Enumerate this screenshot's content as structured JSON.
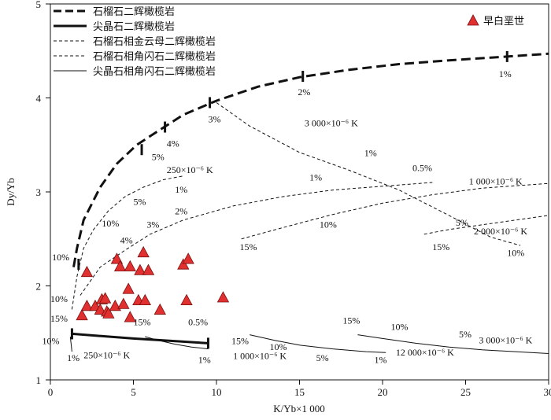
{
  "chart_data": {
    "type": "scatter",
    "xlabel": "K/Yb×1 000",
    "ylabel": "Dy/Yb",
    "xlim": [
      0,
      30
    ],
    "ylim": [
      1,
      5
    ],
    "xticks": [
      "0",
      "5",
      "10",
      "15",
      "20",
      "25",
      "30"
    ],
    "yticks": [
      "1",
      "2",
      "3",
      "4",
      "5"
    ],
    "grid": false,
    "legend_position": "top-left",
    "series": [
      {
        "name": "石榴石二辉橄榄岩",
        "kind": "line",
        "style": "bold-dashed",
        "points": [
          [
            1.4,
            2.2
          ],
          [
            1.6,
            2.4
          ],
          [
            2.0,
            2.7
          ],
          [
            3.0,
            3.05
          ],
          [
            4.0,
            3.3
          ],
          [
            5.2,
            3.5
          ],
          [
            6.5,
            3.65
          ],
          [
            8.0,
            3.82
          ],
          [
            10.0,
            3.97
          ],
          [
            12.5,
            4.12
          ],
          [
            15.0,
            4.22
          ],
          [
            18.0,
            4.3
          ],
          [
            21.0,
            4.36
          ],
          [
            24.0,
            4.4
          ],
          [
            27.5,
            4.44
          ],
          [
            30.0,
            4.47
          ]
        ],
        "tick_marks": [
          [
            1.7,
            2.23
          ],
          [
            5.5,
            3.45
          ],
          [
            6.9,
            3.69
          ],
          [
            9.6,
            3.95
          ],
          [
            15.2,
            4.23
          ],
          [
            27.5,
            4.44
          ]
        ]
      },
      {
        "name": "尖晶石二辉橄榄岩",
        "kind": "line",
        "style": "bold-solid",
        "points": [
          [
            1.3,
            1.49
          ],
          [
            5.0,
            1.44
          ],
          [
            9.5,
            1.39
          ]
        ],
        "tick_marks": [
          [
            1.3,
            1.49
          ],
          [
            9.5,
            1.39
          ]
        ]
      },
      {
        "name": "石榴石相金云母二辉橄榄岩",
        "kind": "line",
        "style": "dashed",
        "curves": [
          [
            [
              1.3,
              1.75
            ],
            [
              1.6,
              2.1
            ],
            [
              2.0,
              2.4
            ],
            [
              2.6,
              2.6
            ],
            [
              3.5,
              2.8
            ],
            [
              4.5,
              2.95
            ],
            [
              5.6,
              3.05
            ],
            [
              6.8,
              3.13
            ],
            [
              8.0,
              3.17
            ]
          ],
          [
            [
              1.8,
              1.9
            ],
            [
              3.0,
              2.2
            ],
            [
              4.5,
              2.38
            ],
            [
              6.0,
              2.55
            ],
            [
              8.0,
              2.7
            ],
            [
              11.0,
              2.85
            ],
            [
              14.0,
              2.95
            ],
            [
              17.0,
              3.02
            ],
            [
              20.0,
              3.06
            ],
            [
              23.0,
              3.1
            ]
          ],
          [
            [
              11.5,
              2.5
            ],
            [
              14.0,
              2.62
            ],
            [
              17.0,
              2.76
            ],
            [
              20.0,
              2.88
            ],
            [
              23.0,
              2.97
            ],
            [
              26.0,
              3.04
            ],
            [
              30.0,
              3.09
            ]
          ],
          [
            [
              10.0,
              3.95
            ],
            [
              12.0,
              3.7
            ],
            [
              15.0,
              3.42
            ],
            [
              18.0,
              3.23
            ],
            [
              21.0,
              3.02
            ],
            [
              24.0,
              2.75
            ],
            [
              26.5,
              2.52
            ],
            [
              28.3,
              2.43
            ]
          ]
        ]
      },
      {
        "name": "石榴石相角闪石二辉橄榄岩",
        "kind": "line",
        "style": "dashed",
        "curves": [
          [
            [
              22.5,
              2.55
            ],
            [
              24.0,
              2.6
            ],
            [
              26.0,
              2.65
            ],
            [
              28.0,
              2.7
            ],
            [
              30.0,
              2.75
            ]
          ]
        ]
      },
      {
        "name": "尖晶石相角闪石二辉橄榄岩",
        "kind": "line",
        "style": "thin-solid",
        "curves": [
          [
            [
              1.2,
              1.46
            ],
            [
              1.3,
              1.3
            ]
          ],
          [
            [
              5.7,
              1.46
            ],
            [
              6.5,
              1.42
            ],
            [
              7.5,
              1.38
            ],
            [
              8.5,
              1.35
            ],
            [
              9.5,
              1.33
            ]
          ],
          [
            [
              12.0,
              1.48
            ],
            [
              13.5,
              1.42
            ],
            [
              15.0,
              1.37
            ],
            [
              17.0,
              1.33
            ],
            [
              19.0,
              1.3
            ],
            [
              20.2,
              1.29
            ]
          ],
          [
            [
              18.5,
              1.48
            ],
            [
              20.0,
              1.44
            ],
            [
              22.0,
              1.39
            ],
            [
              24.0,
              1.35
            ],
            [
              26.0,
              1.32
            ],
            [
              28.0,
              1.3
            ],
            [
              30.0,
              1.28
            ]
          ]
        ]
      },
      {
        "name": "早白垩世",
        "kind": "scatter",
        "marker": "triangle",
        "color": "#e03030",
        "points": [
          [
            2.2,
            2.14
          ],
          [
            4.0,
            2.28
          ],
          [
            4.2,
            2.2
          ],
          [
            4.8,
            2.2
          ],
          [
            5.4,
            2.16
          ],
          [
            5.6,
            2.35
          ],
          [
            5.9,
            2.16
          ],
          [
            8.0,
            2.22
          ],
          [
            8.3,
            2.28
          ],
          [
            4.7,
            1.96
          ],
          [
            2.2,
            1.78
          ],
          [
            2.7,
            1.78
          ],
          [
            3.1,
            1.85
          ],
          [
            3.0,
            1.74
          ],
          [
            3.4,
            1.72
          ],
          [
            3.5,
            1.7
          ],
          [
            3.9,
            1.78
          ],
          [
            4.4,
            1.8
          ],
          [
            5.3,
            1.84
          ],
          [
            5.7,
            1.84
          ],
          [
            6.6,
            1.74
          ],
          [
            8.2,
            1.84
          ],
          [
            10.4,
            1.87
          ],
          [
            1.9,
            1.68
          ],
          [
            4.8,
            1.66
          ],
          [
            3.3,
            1.86
          ]
        ]
      }
    ],
    "annotations": [
      {
        "text": "10%",
        "x": 0.1,
        "y": 2.27
      },
      {
        "text": "5%",
        "x": 6.1,
        "y": 3.34
      },
      {
        "text": "4%",
        "x": 7.0,
        "y": 3.48
      },
      {
        "text": "3%",
        "x": 9.5,
        "y": 3.74
      },
      {
        "text": "2%",
        "x": 14.9,
        "y": 4.03
      },
      {
        "text": "1%",
        "x": 27.0,
        "y": 4.22
      },
      {
        "text": "10%",
        "x": 0.0,
        "y": 1.83
      },
      {
        "text": "15%",
        "x": 0.0,
        "y": 1.62
      },
      {
        "text": "10%",
        "x": -0.5,
        "y": 1.38
      },
      {
        "text": "1%",
        "x": 1.0,
        "y": 1.2
      },
      {
        "text": "250×10⁻⁶ K",
        "x": 2.0,
        "y": 1.23
      },
      {
        "text": "250×10⁻⁶ K",
        "x": 7.0,
        "y": 3.2
      },
      {
        "text": "1%",
        "x": 7.5,
        "y": 2.99
      },
      {
        "text": "5%",
        "x": 5.0,
        "y": 2.86
      },
      {
        "text": "10%",
        "x": 3.1,
        "y": 2.63
      },
      {
        "text": "2%",
        "x": 7.5,
        "y": 2.76
      },
      {
        "text": "3%",
        "x": 5.8,
        "y": 2.62
      },
      {
        "text": "4%",
        "x": 4.2,
        "y": 2.45
      },
      {
        "text": "1%",
        "x": 15.6,
        "y": 3.12
      },
      {
        "text": "0.5%",
        "x": 21.8,
        "y": 3.22
      },
      {
        "text": "1 000×10⁻⁶ K",
        "x": 25.2,
        "y": 3.08
      },
      {
        "text": "10%",
        "x": 16.2,
        "y": 2.62
      },
      {
        "text": "15%",
        "x": 11.4,
        "y": 2.38
      },
      {
        "text": "2 000×10⁻⁶ K",
        "x": 25.5,
        "y": 2.55
      },
      {
        "text": "5%",
        "x": 24.4,
        "y": 2.64
      },
      {
        "text": "15%",
        "x": 23.0,
        "y": 2.38
      },
      {
        "text": "10%",
        "x": 27.5,
        "y": 2.32
      },
      {
        "text": "3 000×10⁻⁶ K",
        "x": 15.3,
        "y": 3.7
      },
      {
        "text": "1%",
        "x": 18.9,
        "y": 3.38
      },
      {
        "text": "15%",
        "x": 5.0,
        "y": 1.58
      },
      {
        "text": "0.5%",
        "x": 8.3,
        "y": 1.58
      },
      {
        "text": "1%",
        "x": 8.9,
        "y": 1.18
      },
      {
        "text": "1 000×10⁻⁶ K",
        "x": 11.0,
        "y": 1.22
      },
      {
        "text": "15%",
        "x": 10.9,
        "y": 1.38
      },
      {
        "text": "10%",
        "x": 13.2,
        "y": 1.32
      },
      {
        "text": "5%",
        "x": 16.0,
        "y": 1.2
      },
      {
        "text": "1%",
        "x": 19.5,
        "y": 1.18
      },
      {
        "text": "15%",
        "x": 17.6,
        "y": 1.6
      },
      {
        "text": "10%",
        "x": 20.5,
        "y": 1.53
      },
      {
        "text": "5%",
        "x": 24.6,
        "y": 1.45
      },
      {
        "text": "3 000×10⁻⁶ K",
        "x": 25.8,
        "y": 1.39
      },
      {
        "text": "12 000×10⁻⁶ K",
        "x": 20.8,
        "y": 1.26
      }
    ]
  },
  "colors": {
    "marker_fill": "#e03030",
    "marker_stroke": "#7a1010",
    "line": "#111111"
  }
}
